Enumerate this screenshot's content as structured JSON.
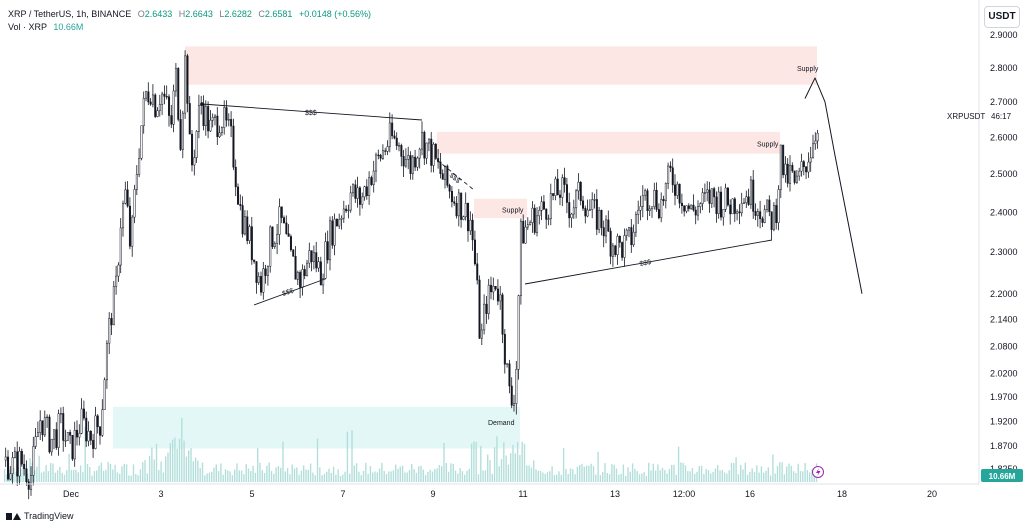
{
  "header": {
    "symbol": "XRP / TetherUS, 1h, BINANCE",
    "open_label": "O",
    "open": "2.6433",
    "high_label": "H",
    "high": "2.6643",
    "low_label": "L",
    "low": "2.6282",
    "close_label": "C",
    "close": "2.6581",
    "change": "+0.0148 (+0.56%)",
    "vol_label": "Vol · XRP",
    "vol_value": "10.66M"
  },
  "currency_button": "USDT",
  "brand": "TradingView",
  "colors": {
    "up": "#26a69a",
    "down": "#131722",
    "supply": "#fde7e4",
    "demand": "#e4f7f7",
    "volume": "#b2dfdb"
  },
  "chart_data": {
    "type": "candlestick",
    "y_axis": {
      "ticks": [
        "2.9000",
        "2.8000",
        "2.7000",
        "2.6000",
        "2.5000",
        "2.4000",
        "2.3000",
        "2.2000",
        "2.1400",
        "2.0800",
        "2.0200",
        "1.9700",
        "1.9200",
        "1.8700",
        "1.8250"
      ],
      "tick_values": [
        2.9,
        2.8,
        2.7,
        2.6,
        2.5,
        2.4,
        2.3,
        2.2,
        2.14,
        2.08,
        2.02,
        1.97,
        1.92,
        1.87,
        1.825
      ],
      "scale": "log"
    },
    "x_axis": {
      "ticks": [
        "Dec",
        "3",
        "5",
        "7",
        "9",
        "11",
        "13",
        "12:00",
        "16",
        "18",
        "20"
      ]
    },
    "symbol_label": "XRPUSDT",
    "countdown": "46:17",
    "last_price": "2.6581",
    "volume_label": "10.66M",
    "zones": [
      {
        "type": "supply",
        "label": "Supply",
        "from": 2.75,
        "to": 2.865
      },
      {
        "type": "supply",
        "label": "Supply",
        "from": 2.555,
        "to": 2.615
      },
      {
        "type": "supply",
        "label": "Supply",
        "from": 2.385,
        "to": 2.435
      },
      {
        "type": "demand",
        "label": "Demand",
        "from": 1.865,
        "to": 1.95
      }
    ],
    "liquidity_label": "$$$",
    "price_path": [
      [
        0,
        1.85
      ],
      [
        10,
        1.83
      ],
      [
        20,
        1.84
      ],
      [
        30,
        1.81
      ],
      [
        40,
        1.93
      ],
      [
        50,
        1.88
      ],
      [
        60,
        1.91
      ],
      [
        70,
        1.86
      ],
      [
        80,
        1.92
      ],
      [
        90,
        1.89
      ],
      [
        100,
        1.92
      ],
      [
        105,
        2.05
      ],
      [
        110,
        2.15
      ],
      [
        115,
        2.2
      ],
      [
        120,
        2.38
      ],
      [
        125,
        2.45
      ],
      [
        130,
        2.3
      ],
      [
        135,
        2.48
      ],
      [
        140,
        2.62
      ],
      [
        145,
        2.72
      ],
      [
        150,
        2.74
      ],
      [
        155,
        2.69
      ],
      [
        160,
        2.73
      ],
      [
        165,
        2.7
      ],
      [
        170,
        2.62
      ],
      [
        175,
        2.78
      ],
      [
        180,
        2.6
      ],
      [
        185,
        2.85
      ],
      [
        190,
        2.5
      ],
      [
        195,
        2.6
      ],
      [
        200,
        2.7
      ],
      [
        210,
        2.62
      ],
      [
        220,
        2.66
      ],
      [
        230,
        2.6
      ],
      [
        240,
        2.4
      ],
      [
        250,
        2.32
      ],
      [
        260,
        2.22
      ],
      [
        270,
        2.33
      ],
      [
        280,
        2.38
      ],
      [
        290,
        2.28
      ],
      [
        300,
        2.23
      ],
      [
        310,
        2.3
      ],
      [
        320,
        2.25
      ],
      [
        330,
        2.35
      ],
      [
        340,
        2.4
      ],
      [
        350,
        2.45
      ],
      [
        360,
        2.43
      ],
      [
        370,
        2.5
      ],
      [
        380,
        2.55
      ],
      [
        390,
        2.6
      ],
      [
        400,
        2.57
      ],
      [
        410,
        2.52
      ],
      [
        420,
        2.6
      ],
      [
        430,
        2.56
      ],
      [
        440,
        2.5
      ],
      [
        450,
        2.45
      ],
      [
        460,
        2.42
      ],
      [
        470,
        2.38
      ],
      [
        475,
        2.25
      ],
      [
        480,
        2.08
      ],
      [
        485,
        2.18
      ],
      [
        490,
        2.2
      ],
      [
        495,
        2.23
      ],
      [
        500,
        2.18
      ],
      [
        505,
        2.05
      ],
      [
        510,
        1.95
      ],
      [
        515,
        2.0
      ],
      [
        520,
        2.34
      ],
      [
        530,
        2.38
      ],
      [
        540,
        2.4
      ],
      [
        550,
        2.43
      ],
      [
        560,
        2.46
      ],
      [
        570,
        2.41
      ],
      [
        580,
        2.45
      ],
      [
        590,
        2.4
      ],
      [
        600,
        2.38
      ],
      [
        610,
        2.33
      ],
      [
        620,
        2.31
      ],
      [
        630,
        2.33
      ],
      [
        640,
        2.43
      ],
      [
        650,
        2.45
      ],
      [
        660,
        2.42
      ],
      [
        670,
        2.5
      ],
      [
        680,
        2.45
      ],
      [
        690,
        2.4
      ],
      [
        700,
        2.42
      ],
      [
        710,
        2.44
      ],
      [
        720,
        2.43
      ],
      [
        730,
        2.42
      ],
      [
        740,
        2.44
      ],
      [
        750,
        2.45
      ],
      [
        760,
        2.41
      ],
      [
        770,
        2.38
      ],
      [
        775,
        2.4
      ],
      [
        780,
        2.55
      ],
      [
        785,
        2.48
      ],
      [
        790,
        2.5
      ],
      [
        795,
        2.46
      ],
      [
        800,
        2.5
      ],
      [
        805,
        2.53
      ],
      [
        810,
        2.57
      ],
      [
        815,
        2.62
      ],
      [
        818,
        2.66
      ]
    ],
    "projection": [
      [
        805,
        2.71
      ],
      [
        815,
        2.77
      ],
      [
        825,
        2.7
      ],
      [
        835,
        2.55
      ],
      [
        850,
        2.35
      ],
      [
        862,
        2.2
      ]
    ]
  }
}
